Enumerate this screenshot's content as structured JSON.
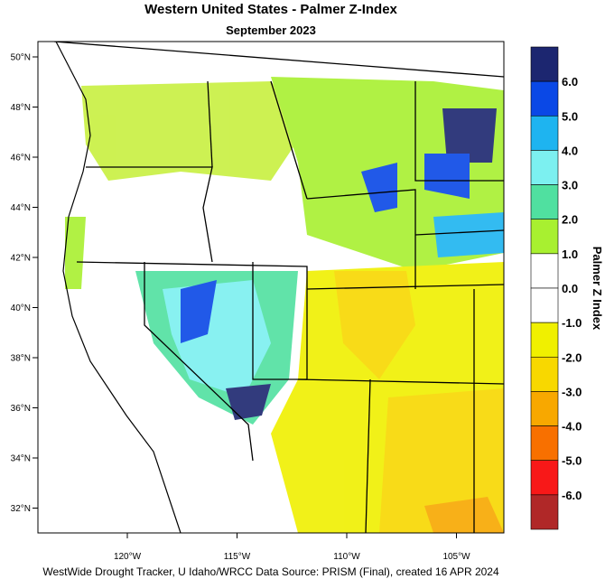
{
  "title": "Western United States - Palmer Z-Index",
  "subtitle": "September 2023",
  "lat_labels": [
    "50°N",
    "48°N",
    "46°N",
    "44°N",
    "42°N",
    "40°N",
    "38°N",
    "36°N",
    "34°N",
    "32°N"
  ],
  "lon_labels": [
    "120°W",
    "115°W",
    "110°W",
    "105°W"
  ],
  "colorbar": {
    "title": "Palmer Z Index",
    "labels": [
      "6.0",
      "5.0",
      "4.0",
      "3.0",
      "2.0",
      "1.0",
      "0.0",
      "-1.0",
      "-2.0",
      "-3.0",
      "-4.0",
      "-5.0",
      "-6.0"
    ],
    "colors": [
      "#1c2670",
      "#0a48e6",
      "#1eb4f0",
      "#7cf0f0",
      "#50e0a0",
      "#a8f030",
      "#ffffff",
      "#ffffff",
      "#f0f000",
      "#f8d800",
      "#f8a800",
      "#f87000",
      "#f81818",
      "#b02828"
    ]
  },
  "footer": "WestWide Drought Tracker, U Idaho/WRCC Data Source: PRISM (Final), created 16 APR 2024"
}
